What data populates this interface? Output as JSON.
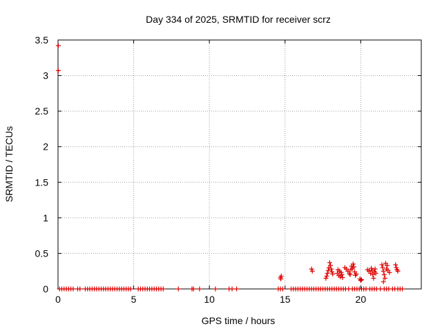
{
  "chart_data": {
    "type": "scatter",
    "title": "Day 334 of 2025, SRMTID for receiver scrz",
    "xlabel": "GPS time / hours",
    "ylabel": "SRMTID / TECUs",
    "xlim": [
      0,
      24
    ],
    "ylim": [
      0,
      3.5
    ],
    "xticks": [
      0,
      5,
      10,
      15,
      20
    ],
    "xtick_labels": [
      "0",
      "5",
      "10",
      "15",
      "20"
    ],
    "yticks": [
      0,
      0.5,
      1,
      1.5,
      2,
      2.5,
      3,
      3.5
    ],
    "ytick_labels": [
      "0",
      "0.5",
      "1",
      "1.5",
      "2",
      "2.5",
      "3",
      "3.5"
    ],
    "grid": true,
    "marker": "+",
    "color": "#dd0000",
    "points": [
      {
        "x": 0.02,
        "y": 3.42
      },
      {
        "x": 0.02,
        "y": 3.07
      },
      {
        "x": 0.1,
        "y": 0
      },
      {
        "x": 0.25,
        "y": 0
      },
      {
        "x": 0.4,
        "y": 0
      },
      {
        "x": 0.55,
        "y": 0
      },
      {
        "x": 0.7,
        "y": 0
      },
      {
        "x": 0.85,
        "y": 0
      },
      {
        "x": 1.0,
        "y": 0
      },
      {
        "x": 1.3,
        "y": 0
      },
      {
        "x": 1.45,
        "y": 0
      },
      {
        "x": 1.8,
        "y": 0
      },
      {
        "x": 1.95,
        "y": 0
      },
      {
        "x": 2.1,
        "y": 0
      },
      {
        "x": 2.25,
        "y": 0
      },
      {
        "x": 2.4,
        "y": 0
      },
      {
        "x": 2.55,
        "y": 0
      },
      {
        "x": 2.7,
        "y": 0
      },
      {
        "x": 2.85,
        "y": 0
      },
      {
        "x": 3.0,
        "y": 0
      },
      {
        "x": 3.15,
        "y": 0
      },
      {
        "x": 3.3,
        "y": 0
      },
      {
        "x": 3.45,
        "y": 0
      },
      {
        "x": 3.6,
        "y": 0
      },
      {
        "x": 3.75,
        "y": 0
      },
      {
        "x": 3.9,
        "y": 0
      },
      {
        "x": 4.05,
        "y": 0
      },
      {
        "x": 4.2,
        "y": 0
      },
      {
        "x": 4.35,
        "y": 0
      },
      {
        "x": 4.5,
        "y": 0
      },
      {
        "x": 4.65,
        "y": 0
      },
      {
        "x": 4.8,
        "y": 0
      },
      {
        "x": 5.3,
        "y": 0
      },
      {
        "x": 5.45,
        "y": 0
      },
      {
        "x": 5.6,
        "y": 0
      },
      {
        "x": 5.75,
        "y": 0
      },
      {
        "x": 5.9,
        "y": 0
      },
      {
        "x": 6.05,
        "y": 0
      },
      {
        "x": 6.2,
        "y": 0
      },
      {
        "x": 6.35,
        "y": 0
      },
      {
        "x": 6.5,
        "y": 0
      },
      {
        "x": 6.65,
        "y": 0
      },
      {
        "x": 6.8,
        "y": 0
      },
      {
        "x": 6.95,
        "y": 0
      },
      {
        "x": 7.95,
        "y": 0
      },
      {
        "x": 8.85,
        "y": 0
      },
      {
        "x": 8.95,
        "y": 0
      },
      {
        "x": 9.35,
        "y": 0
      },
      {
        "x": 10.4,
        "y": 0
      },
      {
        "x": 11.3,
        "y": 0
      },
      {
        "x": 11.5,
        "y": 0
      },
      {
        "x": 11.8,
        "y": 0
      },
      {
        "x": 14.55,
        "y": 0
      },
      {
        "x": 14.7,
        "y": 0
      },
      {
        "x": 14.85,
        "y": 0
      },
      {
        "x": 15.4,
        "y": 0
      },
      {
        "x": 15.55,
        "y": 0
      },
      {
        "x": 15.7,
        "y": 0
      },
      {
        "x": 15.85,
        "y": 0
      },
      {
        "x": 16.0,
        "y": 0
      },
      {
        "x": 16.15,
        "y": 0
      },
      {
        "x": 16.3,
        "y": 0
      },
      {
        "x": 16.45,
        "y": 0
      },
      {
        "x": 16.6,
        "y": 0
      },
      {
        "x": 16.75,
        "y": 0
      },
      {
        "x": 16.9,
        "y": 0
      },
      {
        "x": 17.05,
        "y": 0
      },
      {
        "x": 17.2,
        "y": 0
      },
      {
        "x": 17.35,
        "y": 0
      },
      {
        "x": 17.5,
        "y": 0
      },
      {
        "x": 17.65,
        "y": 0
      },
      {
        "x": 17.8,
        "y": 0
      },
      {
        "x": 17.95,
        "y": 0
      },
      {
        "x": 18.1,
        "y": 0
      },
      {
        "x": 18.25,
        "y": 0
      },
      {
        "x": 18.4,
        "y": 0
      },
      {
        "x": 18.55,
        "y": 0
      },
      {
        "x": 18.7,
        "y": 0
      },
      {
        "x": 18.85,
        "y": 0
      },
      {
        "x": 19.0,
        "y": 0
      },
      {
        "x": 19.2,
        "y": 0
      },
      {
        "x": 19.45,
        "y": 0
      },
      {
        "x": 19.6,
        "y": 0
      },
      {
        "x": 19.75,
        "y": 0
      },
      {
        "x": 19.9,
        "y": 0
      },
      {
        "x": 20.05,
        "y": 0
      },
      {
        "x": 20.2,
        "y": 0
      },
      {
        "x": 20.35,
        "y": 0
      },
      {
        "x": 20.6,
        "y": 0
      },
      {
        "x": 20.75,
        "y": 0
      },
      {
        "x": 20.9,
        "y": 0
      },
      {
        "x": 21.05,
        "y": 0
      },
      {
        "x": 21.3,
        "y": 0
      },
      {
        "x": 21.55,
        "y": 0
      },
      {
        "x": 21.7,
        "y": 0
      },
      {
        "x": 21.85,
        "y": 0
      },
      {
        "x": 22.1,
        "y": 0
      },
      {
        "x": 22.25,
        "y": 0
      },
      {
        "x": 22.45,
        "y": 0
      },
      {
        "x": 22.6,
        "y": 0
      },
      {
        "x": 22.75,
        "y": 0
      },
      {
        "x": 14.7,
        "y": 0.16
      },
      {
        "x": 14.75,
        "y": 0.18
      },
      {
        "x": 14.72,
        "y": 0.14
      },
      {
        "x": 16.75,
        "y": 0.28
      },
      {
        "x": 16.8,
        "y": 0.25
      },
      {
        "x": 17.75,
        "y": 0.18
      },
      {
        "x": 17.8,
        "y": 0.22
      },
      {
        "x": 17.85,
        "y": 0.26
      },
      {
        "x": 17.9,
        "y": 0.3
      },
      {
        "x": 17.95,
        "y": 0.37
      },
      {
        "x": 18.0,
        "y": 0.33
      },
      {
        "x": 18.05,
        "y": 0.28
      },
      {
        "x": 18.1,
        "y": 0.24
      },
      {
        "x": 17.7,
        "y": 0.15
      },
      {
        "x": 18.15,
        "y": 0.21
      },
      {
        "x": 18.45,
        "y": 0.22
      },
      {
        "x": 18.5,
        "y": 0.27
      },
      {
        "x": 18.55,
        "y": 0.19
      },
      {
        "x": 18.6,
        "y": 0.25
      },
      {
        "x": 18.65,
        "y": 0.17
      },
      {
        "x": 18.7,
        "y": 0.23
      },
      {
        "x": 18.75,
        "y": 0.2
      },
      {
        "x": 18.8,
        "y": 0.16
      },
      {
        "x": 18.95,
        "y": 0.3
      },
      {
        "x": 19.05,
        "y": 0.28
      },
      {
        "x": 19.15,
        "y": 0.25
      },
      {
        "x": 19.25,
        "y": 0.22
      },
      {
        "x": 19.3,
        "y": 0.2
      },
      {
        "x": 19.35,
        "y": 0.27
      },
      {
        "x": 19.4,
        "y": 0.32
      },
      {
        "x": 19.45,
        "y": 0.29
      },
      {
        "x": 19.5,
        "y": 0.35
      },
      {
        "x": 19.55,
        "y": 0.31
      },
      {
        "x": 19.6,
        "y": 0.24
      },
      {
        "x": 19.65,
        "y": 0.19
      },
      {
        "x": 19.7,
        "y": 0.21
      },
      {
        "x": 19.95,
        "y": 0.14
      },
      {
        "x": 20.0,
        "y": 0.12
      },
      {
        "x": 20.05,
        "y": 0.13
      },
      {
        "x": 20.45,
        "y": 0.27
      },
      {
        "x": 20.55,
        "y": 0.25
      },
      {
        "x": 20.65,
        "y": 0.22
      },
      {
        "x": 20.7,
        "y": 0.29
      },
      {
        "x": 20.75,
        "y": 0.26
      },
      {
        "x": 20.8,
        "y": 0.2
      },
      {
        "x": 20.85,
        "y": 0.15
      },
      {
        "x": 20.9,
        "y": 0.24
      },
      {
        "x": 20.95,
        "y": 0.28
      },
      {
        "x": 21.0,
        "y": 0.22
      },
      {
        "x": 21.4,
        "y": 0.34
      },
      {
        "x": 21.45,
        "y": 0.3
      },
      {
        "x": 21.5,
        "y": 0.25
      },
      {
        "x": 21.55,
        "y": 0.2
      },
      {
        "x": 21.6,
        "y": 0.15
      },
      {
        "x": 21.5,
        "y": 0.1
      },
      {
        "x": 21.65,
        "y": 0.36
      },
      {
        "x": 21.7,
        "y": 0.28
      },
      {
        "x": 21.75,
        "y": 0.33
      },
      {
        "x": 21.8,
        "y": 0.26
      },
      {
        "x": 21.9,
        "y": 0.23
      },
      {
        "x": 22.3,
        "y": 0.34
      },
      {
        "x": 22.35,
        "y": 0.3
      },
      {
        "x": 22.4,
        "y": 0.27
      },
      {
        "x": 22.45,
        "y": 0.25
      }
    ]
  }
}
